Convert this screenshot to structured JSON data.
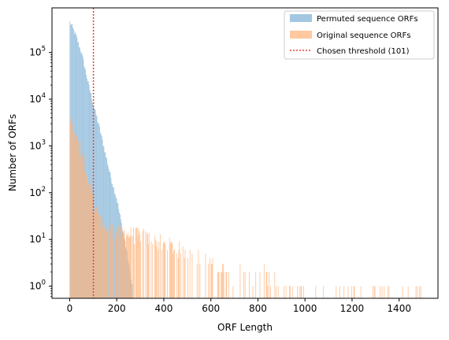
{
  "chart_data": {
    "type": "bar",
    "subtype": "overlaid-histogram",
    "xlabel": "ORF Length",
    "ylabel": "Number of ORFs",
    "xlim": [
      -75,
      1565
    ],
    "ylim": [
      0.55,
      900000
    ],
    "yscale": "log",
    "grid": false,
    "legend_position": "top-right",
    "x_ticks": [
      0,
      200,
      400,
      600,
      800,
      1000,
      1200,
      1400
    ],
    "y_ticks": [
      {
        "value": 1,
        "base": "10",
        "exp": "0"
      },
      {
        "value": 10,
        "base": "10",
        "exp": "1"
      },
      {
        "value": 100,
        "base": "10",
        "exp": "2"
      },
      {
        "value": 1000,
        "base": "10",
        "exp": "3"
      },
      {
        "value": 10000,
        "base": "10",
        "exp": "4"
      },
      {
        "value": 100000,
        "base": "10",
        "exp": "5"
      }
    ],
    "bin_width": 3,
    "series": [
      {
        "name": "Permuted sequence ORFs",
        "color": "#7fb1d6",
        "opacity": 0.72,
        "profile": [
          [
            0,
            450000
          ],
          [
            25,
            230000
          ],
          [
            50,
            95000
          ],
          [
            75,
            25000
          ],
          [
            100,
            7500
          ],
          [
            125,
            2500
          ],
          [
            150,
            700
          ],
          [
            175,
            200
          ],
          [
            200,
            70
          ],
          [
            220,
            20
          ],
          [
            240,
            6
          ],
          [
            255,
            2
          ],
          [
            265,
            1
          ]
        ]
      },
      {
        "name": "Original sequence ORFs",
        "color": "#ffb37a",
        "opacity": 0.72,
        "profile": [
          [
            0,
            3500
          ],
          [
            25,
            1500
          ],
          [
            50,
            700
          ],
          [
            75,
            200
          ],
          [
            100,
            60
          ],
          [
            125,
            30
          ],
          [
            150,
            18
          ],
          [
            200,
            14
          ],
          [
            300,
            12
          ],
          [
            400,
            8
          ],
          [
            500,
            5
          ],
          [
            600,
            3
          ],
          [
            700,
            2
          ],
          [
            800,
            2
          ],
          [
            900,
            1
          ],
          [
            1000,
            1
          ],
          [
            1500,
            1
          ]
        ]
      }
    ],
    "threshold": {
      "name": "Chosen threshold (101)",
      "value": 101,
      "color": "#e0403a"
    }
  }
}
